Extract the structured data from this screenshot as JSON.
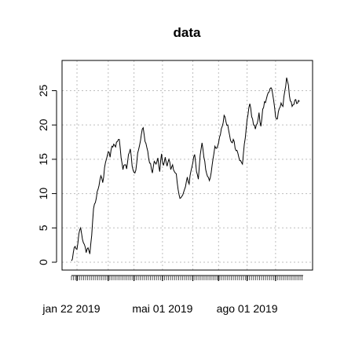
{
  "chart_data": {
    "type": "line",
    "title": "data",
    "xlabel": "",
    "ylabel": "",
    "x_tick_labels": [
      {
        "label": "jan 22 2019",
        "index": 0
      },
      {
        "label": "mai 01 2019",
        "index": 99
      },
      {
        "label": "ago 01 2019",
        "index": 191
      }
    ],
    "y_ticks": [
      0,
      5,
      10,
      15,
      20,
      25
    ],
    "xlim": [
      0,
      252
    ],
    "ylim": [
      0,
      27
    ],
    "grid": true,
    "grid_style": "dotted",
    "line_color": "#000000",
    "knots": [
      [
        0,
        0.2
      ],
      [
        2,
        1.4
      ],
      [
        4,
        2.3
      ],
      [
        6,
        1.9
      ],
      [
        8,
        4.1
      ],
      [
        10,
        5.0
      ],
      [
        12,
        3.3
      ],
      [
        14,
        2.6
      ],
      [
        16,
        1.4
      ],
      [
        18,
        2.1
      ],
      [
        20,
        1.2
      ],
      [
        22,
        3.9
      ],
      [
        24,
        7.8
      ],
      [
        26,
        8.7
      ],
      [
        28,
        10.3
      ],
      [
        30,
        11.2
      ],
      [
        32,
        12.6
      ],
      [
        34,
        11.6
      ],
      [
        36,
        13.8
      ],
      [
        38,
        15.0
      ],
      [
        40,
        16.1
      ],
      [
        42,
        15.3
      ],
      [
        44,
        16.9
      ],
      [
        46,
        17.2
      ],
      [
        48,
        16.8
      ],
      [
        50,
        17.6
      ],
      [
        52,
        17.9
      ],
      [
        54,
        15.2
      ],
      [
        56,
        13.5
      ],
      [
        58,
        14.2
      ],
      [
        60,
        13.6
      ],
      [
        62,
        15.7
      ],
      [
        64,
        16.5
      ],
      [
        66,
        14.0
      ],
      [
        68,
        13.1
      ],
      [
        70,
        13.4
      ],
      [
        72,
        15.9
      ],
      [
        74,
        17.0
      ],
      [
        76,
        18.6
      ],
      [
        78,
        19.6
      ],
      [
        80,
        17.6
      ],
      [
        82,
        16.7
      ],
      [
        84,
        15.1
      ],
      [
        86,
        14.4
      ],
      [
        88,
        13.0
      ],
      [
        90,
        14.7
      ],
      [
        92,
        14.3
      ],
      [
        94,
        15.2
      ],
      [
        96,
        13.2
      ],
      [
        98,
        15.8
      ],
      [
        100,
        14.1
      ],
      [
        102,
        15.3
      ],
      [
        104,
        14.0
      ],
      [
        106,
        15.0
      ],
      [
        108,
        13.5
      ],
      [
        110,
        14.2
      ],
      [
        112,
        13.2
      ],
      [
        114,
        12.9
      ],
      [
        116,
        10.6
      ],
      [
        118,
        9.3
      ],
      [
        120,
        9.6
      ],
      [
        122,
        10.2
      ],
      [
        124,
        11.0
      ],
      [
        126,
        12.4
      ],
      [
        128,
        11.4
      ],
      [
        130,
        13.3
      ],
      [
        132,
        14.5
      ],
      [
        134,
        15.7
      ],
      [
        136,
        13.2
      ],
      [
        138,
        12.1
      ],
      [
        140,
        15.6
      ],
      [
        142,
        17.4
      ],
      [
        144,
        15.3
      ],
      [
        146,
        13.5
      ],
      [
        148,
        12.5
      ],
      [
        150,
        11.9
      ],
      [
        152,
        13.1
      ],
      [
        154,
        15.1
      ],
      [
        156,
        16.9
      ],
      [
        158,
        16.6
      ],
      [
        160,
        17.4
      ],
      [
        162,
        18.6
      ],
      [
        164,
        19.8
      ],
      [
        166,
        21.4
      ],
      [
        168,
        20.5
      ],
      [
        170,
        20.0
      ],
      [
        172,
        18.5
      ],
      [
        174,
        17.5
      ],
      [
        176,
        17.9
      ],
      [
        178,
        16.6
      ],
      [
        180,
        16.3
      ],
      [
        182,
        15.3
      ],
      [
        184,
        14.8
      ],
      [
        186,
        14.3
      ],
      [
        188,
        17.2
      ],
      [
        190,
        19.4
      ],
      [
        192,
        21.5
      ],
      [
        194,
        23.1
      ],
      [
        196,
        21.2
      ],
      [
        198,
        20.0
      ],
      [
        200,
        19.4
      ],
      [
        202,
        20.2
      ],
      [
        204,
        21.8
      ],
      [
        206,
        19.8
      ],
      [
        208,
        22.3
      ],
      [
        210,
        23.4
      ],
      [
        212,
        23.8
      ],
      [
        214,
        24.7
      ],
      [
        216,
        25.3
      ],
      [
        218,
        25.2
      ],
      [
        220,
        23.5
      ],
      [
        222,
        21.2
      ],
      [
        224,
        20.9
      ],
      [
        226,
        22.4
      ],
      [
        228,
        23.2
      ],
      [
        230,
        22.7
      ],
      [
        232,
        24.9
      ],
      [
        234,
        26.9
      ],
      [
        236,
        25.8
      ],
      [
        238,
        23.5
      ],
      [
        240,
        22.7
      ],
      [
        242,
        23.0
      ],
      [
        244,
        23.7
      ],
      [
        246,
        23.2
      ],
      [
        248,
        23.4
      ]
    ]
  }
}
